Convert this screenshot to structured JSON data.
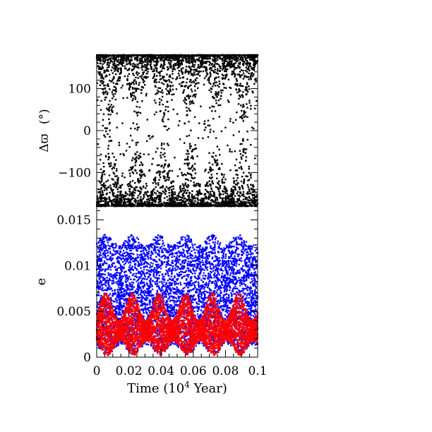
{
  "chart_data": [
    {
      "type": "scatter",
      "panel": "top",
      "ylabel_symbol": "Δϖ",
      "ylabel_unit": "(°)",
      "xlim": [
        0,
        0.1
      ],
      "ylim": [
        -180,
        180
      ],
      "yticks": [
        -100,
        0,
        100
      ],
      "ytick_labels": [
        "−100",
        "0",
        "100"
      ],
      "series": [
        {
          "color": "#000000",
          "description_of_pattern": "dense bands near ±180° with triangular excursions toward 0° at a period of about 0.016",
          "period": 0.0165,
          "band_center": 180,
          "excursion_depth_deg": 150,
          "n_points": 4000
        }
      ]
    },
    {
      "type": "scatter",
      "panel": "bottom",
      "ylabel": "e",
      "xlabel": "Time (10",
      "xlabel_sup": "4",
      "xlabel_tail": " Year)",
      "xlim": [
        0,
        0.1
      ],
      "ylim": [
        0,
        0.0165
      ],
      "yticks": [
        0,
        0.005,
        0.01,
        0.015
      ],
      "ytick_labels": [
        "0",
        "0.005",
        "0.01",
        "0.015"
      ],
      "xticks": [
        0,
        0.02,
        0.04,
        0.06,
        0.08,
        0.1
      ],
      "xtick_labels": [
        "0",
        "0.02",
        "0.04",
        "0.06",
        "0.08",
        "0.1"
      ],
      "series": [
        {
          "color": "#0000ff",
          "upper_envelope_mean": 0.0128,
          "upper_envelope_amplitude": 0.0006,
          "lower_envelope_mean": 0.0008,
          "lower_envelope_amplitude": 0.0006,
          "period": 0.0165,
          "n_points": 9000
        },
        {
          "color": "#ff0000",
          "upper_envelope_mean": 0.0055,
          "upper_envelope_amplitude": 0.0015,
          "lower_envelope_mean": 0.001,
          "lower_envelope_amplitude": 0.0008,
          "period": 0.0165,
          "n_points": 9000
        }
      ]
    }
  ]
}
